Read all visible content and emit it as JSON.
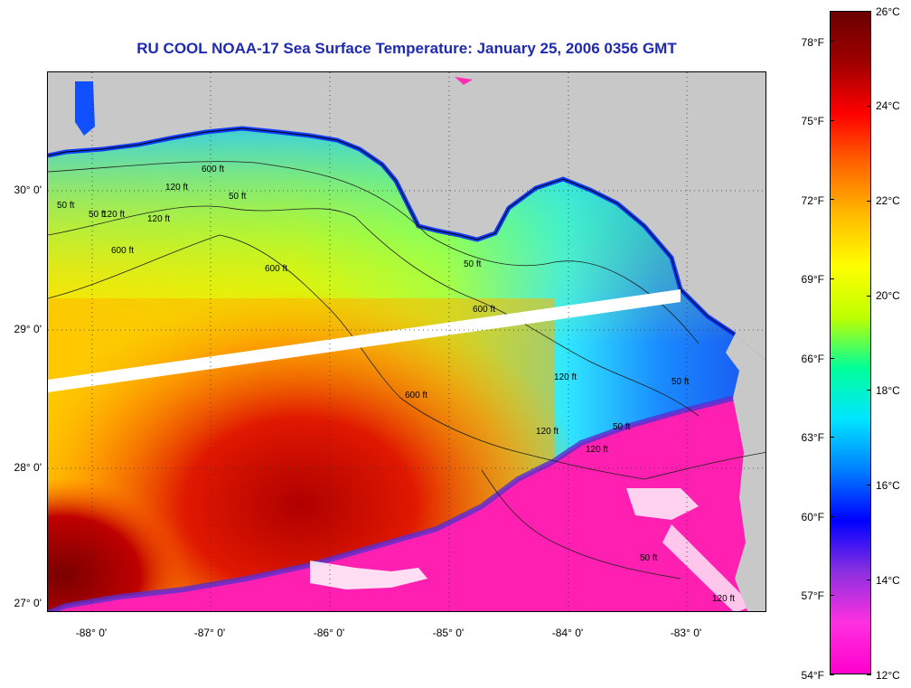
{
  "title": "RU COOL  NOAA-17  Sea Surface Temperature:  January 25, 2006 0356 GMT",
  "lat_labels": [
    "30° 0'",
    "29° 0'",
    "28° 0'",
    "27° 0'"
  ],
  "lon_labels": [
    "-88° 0'",
    "-87° 0'",
    "-86° 0'",
    "-85° 0'",
    "-84° 0'",
    "-83° 0'"
  ],
  "contour_labels": [
    "50 ft",
    "120 ft",
    "120 ft",
    "600 ft",
    "50 ft",
    "120 ft",
    "600 ft",
    "600 ft",
    "600 ft",
    "50 ft",
    "120 ft",
    "600 ft",
    "50 ft",
    "120 ft",
    "120 ft",
    "50 ft",
    "120 ft",
    "50 ft",
    "50 ft"
  ],
  "colorbar": {
    "celsius": [
      "26°C",
      "24°C",
      "22°C",
      "20°C",
      "18°C",
      "16°C",
      "14°C",
      "12°C"
    ],
    "fahrenheit": [
      "78°F",
      "75°F",
      "72°F",
      "69°F",
      "66°F",
      "63°F",
      "60°F",
      "57°F",
      "54°F"
    ],
    "colors": [
      "#ff00cc",
      "#ff30e0",
      "#8b2fe0",
      "#0000ff",
      "#0080ff",
      "#00e5ff",
      "#00ff9a",
      "#bfff00",
      "#ffff00",
      "#ffbb00",
      "#ff6600",
      "#ff0000",
      "#a00000",
      "#6b0000"
    ]
  },
  "colors": {
    "land": "#c8c8c8",
    "title": "#1f2ab0",
    "gap_swath": "#ffffff",
    "cloud_mask": "#ff1fb0"
  }
}
